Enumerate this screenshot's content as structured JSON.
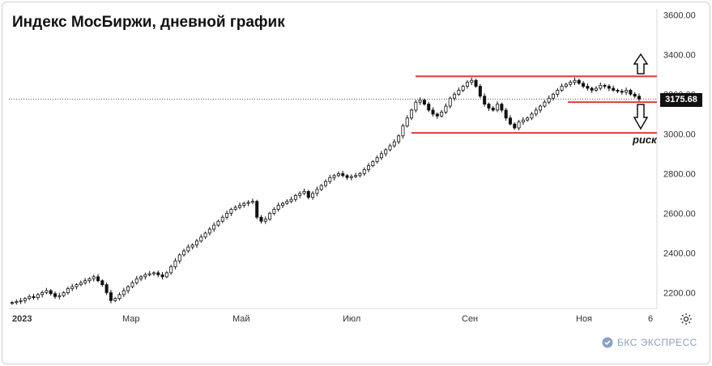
{
  "title": "Индекс МосБиржи, дневной график",
  "price_label": "3175.68",
  "annotation": "риск",
  "brand": {
    "name": "БКС ЭКСПРЕСС"
  },
  "icons": {
    "settings": "gear-icon",
    "up_arrow": "outline-up-arrow-icon",
    "down_arrow": "outline-down-arrow-icon",
    "logo": "bks-logo-icon"
  },
  "colors": {
    "candle": "#111111",
    "level_line": "#e53935",
    "logo": "#8aa0c4"
  },
  "chart_data": {
    "type": "candlestick",
    "title": "Индекс МосБиржи, дневной график",
    "x_tick_labels": [
      "2023",
      "Мар",
      "Май",
      "Июл",
      "Сен",
      "Ноя",
      "6"
    ],
    "y_tick_labels": [
      "2200.00",
      "2400.00",
      "2600.00",
      "2800.00",
      "3000.00",
      "3200.00",
      "3400.00",
      "3600.00"
    ],
    "ylim": [
      2120,
      3630
    ],
    "current_value": 3175.68,
    "series_close": [
      2150,
      2155,
      2160,
      2170,
      2180,
      2175,
      2190,
      2200,
      2210,
      2195,
      2180,
      2185,
      2200,
      2220,
      2230,
      2240,
      2250,
      2260,
      2270,
      2280,
      2260,
      2240,
      2200,
      2160,
      2170,
      2190,
      2210,
      2230,
      2250,
      2270,
      2280,
      2290,
      2295,
      2300,
      2290,
      2280,
      2300,
      2330,
      2360,
      2390,
      2410,
      2430,
      2440,
      2460,
      2480,
      2500,
      2520,
      2540,
      2560,
      2580,
      2600,
      2620,
      2630,
      2640,
      2650,
      2655,
      2660,
      2580,
      2560,
      2570,
      2600,
      2620,
      2640,
      2650,
      2660,
      2670,
      2690,
      2700,
      2710,
      2680,
      2700,
      2720,
      2740,
      2760,
      2780,
      2790,
      2800,
      2790,
      2780,
      2785,
      2790,
      2800,
      2820,
      2840,
      2860,
      2880,
      2900,
      2920,
      2940,
      2960,
      2990,
      3040,
      3080,
      3120,
      3160,
      3170,
      3150,
      3120,
      3100,
      3090,
      3110,
      3140,
      3180,
      3200,
      3220,
      3240,
      3260,
      3270,
      3240,
      3190,
      3150,
      3130,
      3120,
      3150,
      3120,
      3080,
      3050,
      3030,
      3060,
      3070,
      3080,
      3100,
      3120,
      3140,
      3160,
      3180,
      3200,
      3220,
      3240,
      3250,
      3260,
      3270,
      3255,
      3240,
      3230,
      3220,
      3230,
      3245,
      3240,
      3230,
      3220,
      3215,
      3210,
      3220,
      3200,
      3190,
      3175.68
    ],
    "levels": [
      {
        "name": "resistance",
        "value": 3290
      },
      {
        "name": "support",
        "value": 3005
      },
      {
        "name": "stop",
        "value": 3160
      }
    ]
  }
}
